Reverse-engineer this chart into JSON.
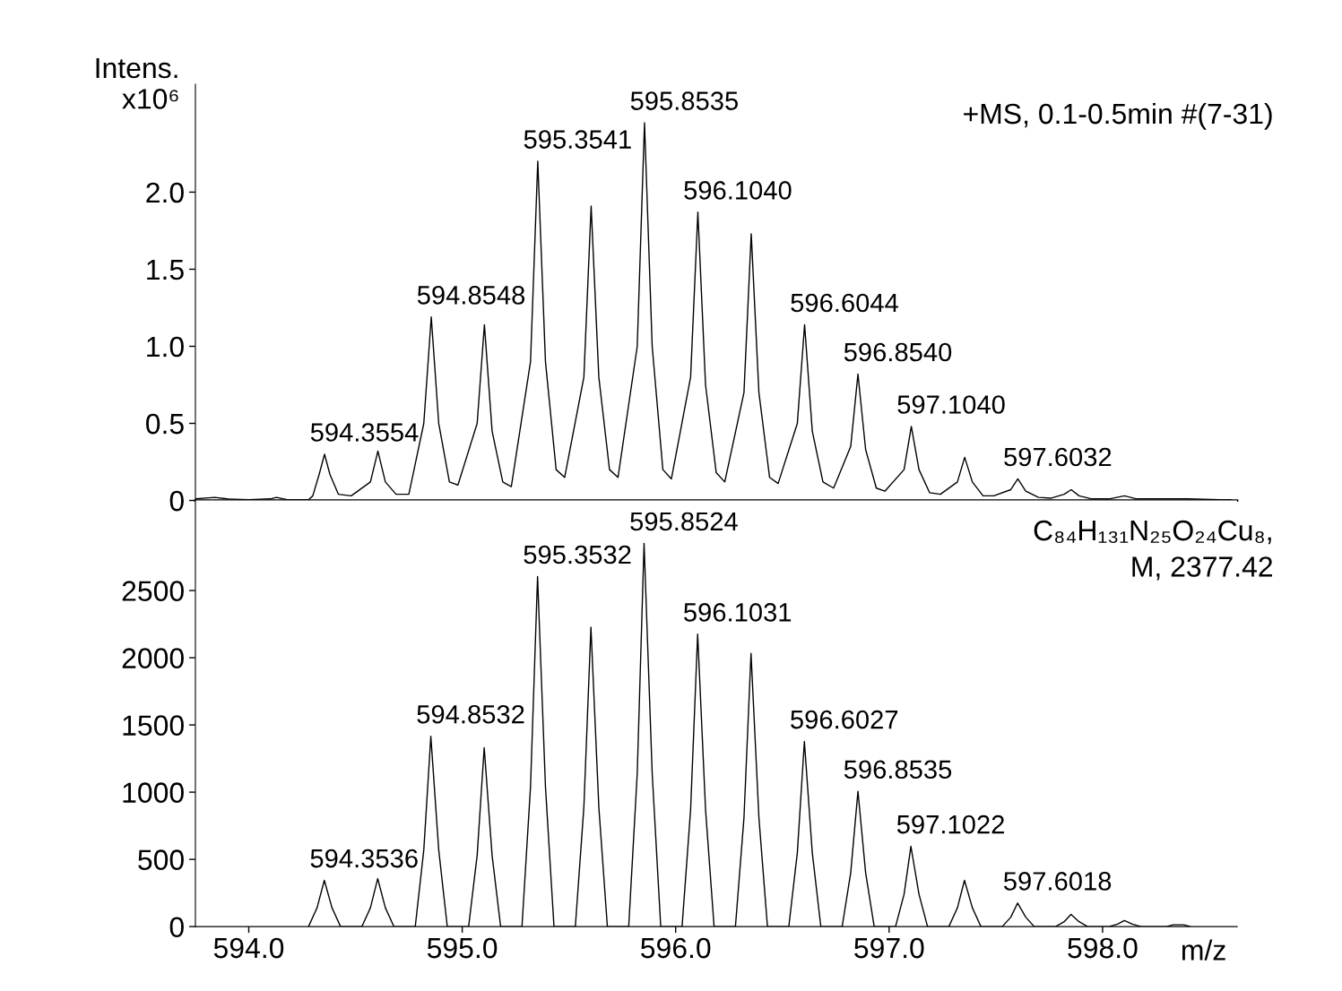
{
  "chart_data": [
    {
      "type": "line",
      "ylabel": "Intens.\nx10⁶",
      "xlim": [
        593.75,
        598.63
      ],
      "ylim": [
        0,
        2.7
      ],
      "yticks": [
        0,
        0.5,
        {
          "value": 1,
          "label": "1.0"
        },
        1.5,
        {
          "value": 2,
          "label": "2.0"
        }
      ],
      "tick_labels": "y",
      "grid": false,
      "series": [
        {
          "color": "#000000",
          "x": [
            593.75,
            593.84,
            593.9,
            594.0,
            594.1,
            594.13,
            594.18,
            594.28,
            594.3,
            594.33,
            594.355,
            594.38,
            594.42,
            594.48,
            594.57,
            594.605,
            594.64,
            594.69,
            594.75,
            594.82,
            594.855,
            594.89,
            594.94,
            594.98,
            595.07,
            595.104,
            595.14,
            595.19,
            595.23,
            595.32,
            595.354,
            595.39,
            595.44,
            595.48,
            595.57,
            595.604,
            595.64,
            595.69,
            595.73,
            595.82,
            595.854,
            595.89,
            595.94,
            595.98,
            596.07,
            596.104,
            596.14,
            596.19,
            596.23,
            596.32,
            596.354,
            596.39,
            596.44,
            596.48,
            596.57,
            596.604,
            596.64,
            596.69,
            596.74,
            596.82,
            596.854,
            596.89,
            596.94,
            596.98,
            597.07,
            597.104,
            597.14,
            597.19,
            597.24,
            597.32,
            597.354,
            597.39,
            597.44,
            597.49,
            597.57,
            597.603,
            597.64,
            597.7,
            597.76,
            597.82,
            597.853,
            597.89,
            597.95,
            598.03,
            598.103,
            598.16,
            598.3,
            598.4,
            598.55,
            598.6
          ],
          "values": [
            0.01,
            0.02,
            0.01,
            0.005,
            0.01,
            0.02,
            0.005,
            0.005,
            0.03,
            0.17,
            0.3,
            0.17,
            0.04,
            0.03,
            0.12,
            0.32,
            0.12,
            0.04,
            0.04,
            0.5,
            1.19,
            0.5,
            0.12,
            0.1,
            0.5,
            1.14,
            0.45,
            0.12,
            0.09,
            0.9,
            2.2,
            0.9,
            0.2,
            0.15,
            0.8,
            1.91,
            0.8,
            0.2,
            0.15,
            1.0,
            2.45,
            1.0,
            0.2,
            0.14,
            0.8,
            1.87,
            0.75,
            0.18,
            0.12,
            0.7,
            1.73,
            0.7,
            0.15,
            0.11,
            0.5,
            1.14,
            0.45,
            0.12,
            0.08,
            0.35,
            0.82,
            0.33,
            0.08,
            0.06,
            0.2,
            0.48,
            0.2,
            0.05,
            0.04,
            0.12,
            0.28,
            0.12,
            0.03,
            0.03,
            0.07,
            0.14,
            0.06,
            0.02,
            0.015,
            0.04,
            0.07,
            0.03,
            0.01,
            0.01,
            0.03,
            0.01,
            0.01,
            0.01,
            0.005,
            0.005
          ]
        }
      ],
      "annotations": [
        "+MS, 0.1-0.5min #(7-31)",
        {
          "text": "594.3554",
          "x": 594.355,
          "y": 0.3
        },
        {
          "text": "594.8548",
          "x": 594.855,
          "y": 1.19
        },
        {
          "text": "595.3541",
          "x": 595.354,
          "y": 2.2
        },
        {
          "text": "595.8535",
          "x": 595.854,
          "y": 2.45
        },
        {
          "text": "596.1040",
          "x": 596.104,
          "y": 1.87
        },
        {
          "text": "596.6044",
          "x": 596.604,
          "y": 1.14
        },
        {
          "text": "596.8540",
          "x": 596.854,
          "y": 0.82
        },
        {
          "text": "597.1040",
          "x": 597.104,
          "y": 0.48
        },
        {
          "text": "597.6032",
          "x": 597.603,
          "y": 0.14
        }
      ]
    },
    {
      "type": "line",
      "xlabel": "m/z",
      "xlim": [
        593.75,
        598.63
      ],
      "ylim": [
        0,
        3170
      ],
      "xticks": [
        {
          "value": 594,
          "label": "594.0"
        },
        {
          "value": 595,
          "label": "595.0"
        },
        {
          "value": 596,
          "label": "596.0"
        },
        {
          "value": 597,
          "label": "597.0"
        },
        {
          "value": 598,
          "label": "598.0"
        }
      ],
      "yticks": [
        0,
        500,
        1000,
        1500,
        2000,
        2500
      ],
      "grid": false,
      "series": [
        {
          "color": "#000000",
          "x": [
            594.28,
            594.32,
            594.354,
            594.39,
            594.43,
            594.53,
            594.57,
            594.604,
            594.64,
            594.68,
            594.78,
            594.82,
            594.853,
            594.89,
            594.93,
            595.03,
            595.07,
            595.103,
            595.14,
            595.18,
            595.28,
            595.32,
            595.353,
            595.39,
            595.43,
            595.53,
            595.57,
            595.603,
            595.64,
            595.68,
            595.78,
            595.82,
            595.852,
            595.89,
            595.93,
            596.03,
            596.07,
            596.103,
            596.14,
            596.18,
            596.28,
            596.32,
            596.353,
            596.39,
            596.43,
            596.53,
            596.57,
            596.603,
            596.64,
            596.68,
            596.78,
            596.82,
            596.854,
            596.89,
            596.93,
            597.03,
            597.07,
            597.102,
            597.14,
            597.18,
            597.28,
            597.32,
            597.353,
            597.39,
            597.43,
            597.53,
            597.57,
            597.602,
            597.64,
            597.68,
            597.78,
            597.82,
            597.852,
            597.89,
            597.93,
            598.03,
            598.07,
            598.102,
            598.14,
            598.18,
            598.3,
            598.33,
            598.38,
            598.41
          ],
          "values": [
            0,
            140,
            344,
            140,
            0,
            0,
            140,
            357,
            140,
            0,
            0,
            570,
            1416,
            570,
            0,
            0,
            530,
            1331,
            530,
            0,
            0,
            1040,
            2604,
            1040,
            0,
            0,
            890,
            2227,
            890,
            0,
            0,
            1140,
            2851,
            1140,
            0,
            0,
            870,
            2175,
            870,
            0,
            0,
            810,
            2032,
            810,
            0,
            0,
            550,
            1377,
            550,
            0,
            0,
            400,
            1006,
            400,
            0,
            0,
            240,
            597,
            240,
            0,
            0,
            140,
            344,
            140,
            0,
            0,
            70,
            175,
            70,
            0,
            0,
            36,
            91,
            36,
            0,
            0,
            18,
            45,
            18,
            0,
            0,
            13,
            13,
            0
          ]
        }
      ],
      "annotations": [
        "C₈₄H₁₃₁N₂₅O₂₄Cu₈,",
        "M, 2377.42",
        {
          "text": "594.3536",
          "x": 594.354,
          "y": 344
        },
        {
          "text": "594.8532",
          "x": 594.853,
          "y": 1416
        },
        {
          "text": "595.3532",
          "x": 595.353,
          "y": 2604
        },
        {
          "text": "595.8524",
          "x": 595.852,
          "y": 2851
        },
        {
          "text": "596.1031",
          "x": 596.103,
          "y": 2175
        },
        {
          "text": "596.6027",
          "x": 596.603,
          "y": 1377
        },
        {
          "text": "596.8535",
          "x": 596.854,
          "y": 1006
        },
        {
          "text": "597.1022",
          "x": 597.102,
          "y": 597
        },
        {
          "text": "597.6018",
          "x": 597.602,
          "y": 175
        }
      ]
    }
  ]
}
